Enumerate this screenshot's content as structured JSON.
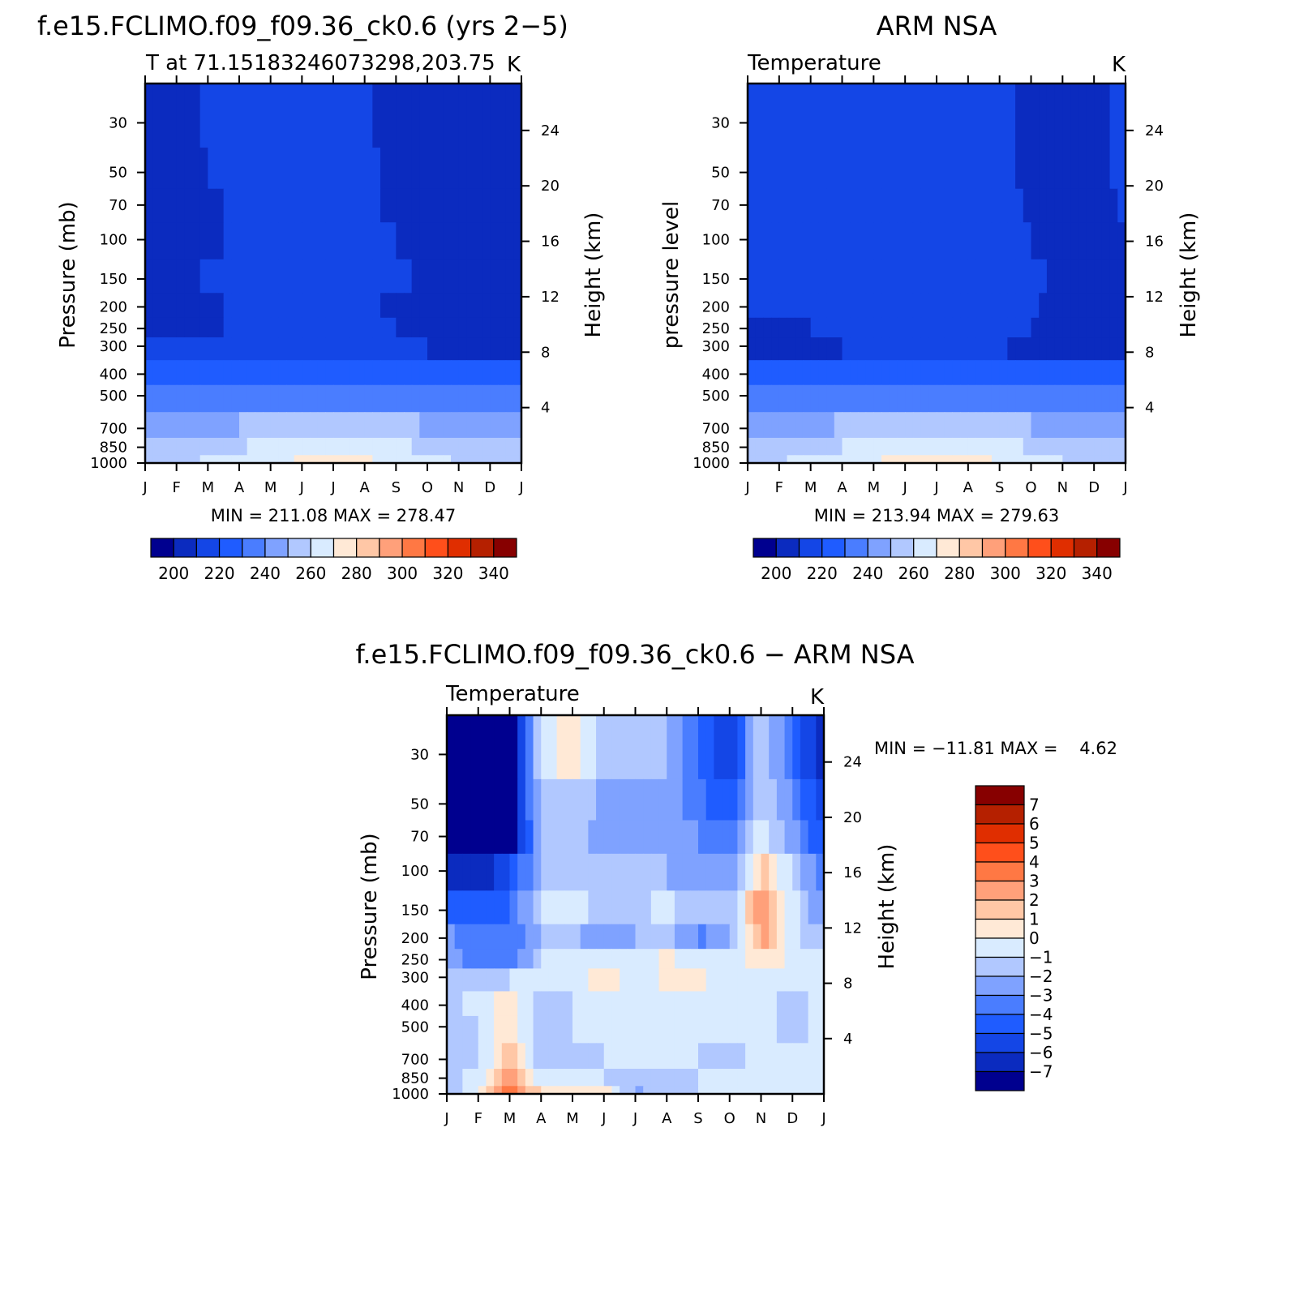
{
  "chart_data": [
    {
      "type": "heatmap",
      "id": "model",
      "title": "f.e15.FCLIMO.f09_f09.36_ck0.6 (yrs 2−5)",
      "left_string": "T at 71.15183246073298,203.75",
      "right_string": "K",
      "ylabel": "Pressure (mb)",
      "ylabel_right": "Height (km)",
      "x_ticks": [
        "J",
        "F",
        "M",
        "A",
        "M",
        "J",
        "J",
        "A",
        "S",
        "O",
        "N",
        "D",
        "J"
      ],
      "y_ticks": [
        30,
        50,
        70,
        100,
        150,
        200,
        250,
        300,
        400,
        500,
        700,
        850,
        1000
      ],
      "height_ticks": [
        4,
        8,
        12,
        16,
        20,
        24
      ],
      "ylim": [
        1000,
        20
      ],
      "minmax_text": "MIN = 211.08 MAX = 278.47",
      "legend": {
        "labels": [
          "200",
          "220",
          "240",
          "260",
          "280",
          "300",
          "320",
          "340"
        ],
        "colors": [
          "#00008f",
          "#0b2bbf",
          "#1446e6",
          "#1f5cff",
          "#4a7dff",
          "#7fa2ff",
          "#b1c8ff",
          "#d9ebff",
          "#ffe9d6",
          "#ffc7a6",
          "#ffa07a",
          "#ff7844",
          "#ff4f1b",
          "#e02e00",
          "#b52000",
          "#870000"
        ]
      },
      "contour_values": [
        [
          205,
          205,
          212,
          212,
          212,
          212,
          212,
          212,
          205,
          205,
          205,
          205,
          205
        ],
        [
          205,
          205,
          210,
          212,
          212,
          212,
          212,
          212,
          207,
          205,
          205,
          205,
          205
        ],
        [
          205,
          205,
          208,
          212,
          212,
          212,
          212,
          212,
          208,
          205,
          205,
          205,
          205
        ],
        [
          205,
          205,
          208,
          212,
          212,
          212,
          212,
          212,
          210,
          207,
          206,
          206,
          206
        ],
        [
          206,
          206,
          211,
          212,
          212,
          212,
          212,
          212,
          212,
          208,
          207,
          204,
          207
        ],
        [
          206,
          206,
          208,
          212,
          212,
          212,
          212,
          212,
          208,
          206,
          206,
          206,
          206
        ],
        [
          207,
          207,
          208,
          213,
          214,
          214,
          214,
          214,
          210,
          207,
          206,
          206,
          206
        ],
        [
          210,
          210,
          210,
          213,
          215,
          216,
          216,
          216,
          214,
          210,
          209,
          209,
          209
        ],
        [
          221,
          221,
          222,
          224,
          227,
          228,
          228,
          228,
          226,
          223,
          221,
          221,
          221
        ],
        [
          231,
          231,
          232,
          234,
          237,
          238,
          239,
          238,
          236,
          233,
          231,
          231,
          231
        ],
        [
          245,
          245,
          247,
          250,
          253,
          255,
          256,
          255,
          253,
          249,
          246,
          245,
          245
        ],
        [
          254,
          254,
          256,
          259,
          263,
          266,
          267,
          266,
          263,
          258,
          255,
          254,
          254
        ],
        [
          258,
          258,
          261,
          264,
          268,
          271,
          272,
          271,
          268,
          263,
          259,
          258,
          258
        ]
      ]
    },
    {
      "type": "heatmap",
      "id": "obs",
      "title": "ARM NSA",
      "left_string": "Temperature",
      "right_string": "K",
      "ylabel": "pressure level",
      "ylabel_right": "Height (km)",
      "x_ticks": [
        "J",
        "F",
        "M",
        "A",
        "M",
        "J",
        "J",
        "A",
        "S",
        "O",
        "N",
        "D",
        "J"
      ],
      "y_ticks": [
        30,
        50,
        70,
        100,
        150,
        200,
        250,
        300,
        400,
        500,
        700,
        850,
        1000
      ],
      "height_ticks": [
        4,
        8,
        12,
        16,
        20,
        24
      ],
      "ylim": [
        1000,
        20
      ],
      "minmax_text": "MIN = 213.94 MAX = 279.63",
      "legend": {
        "labels": [
          "200",
          "220",
          "240",
          "260",
          "280",
          "300",
          "320",
          "340"
        ],
        "colors": [
          "#00008f",
          "#0b2bbf",
          "#1446e6",
          "#1f5cff",
          "#4a7dff",
          "#7fa2ff",
          "#b1c8ff",
          "#d9ebff",
          "#ffe9d6",
          "#ffc7a6",
          "#ffa07a",
          "#ff7844",
          "#ff4f1b",
          "#e02e00",
          "#b52000",
          "#870000"
        ]
      },
      "contour_values": [
        [
          212,
          212,
          212,
          212,
          212,
          212,
          218,
          212,
          212,
          208,
          208,
          208,
          212
        ],
        [
          212,
          212,
          212,
          212,
          212,
          212,
          212,
          212,
          212,
          208,
          208,
          208,
          212
        ],
        [
          212,
          212,
          212,
          212,
          212,
          212,
          212,
          212,
          212,
          209,
          208,
          208,
          211
        ],
        [
          212,
          212,
          212,
          212,
          212,
          212,
          212,
          212,
          212,
          210,
          208,
          208,
          210
        ],
        [
          212,
          212,
          212,
          212,
          212,
          212,
          212,
          212,
          212,
          212,
          208,
          208,
          208
        ],
        [
          211,
          212,
          212,
          212,
          212,
          212,
          212,
          212,
          212,
          211,
          208,
          208,
          208
        ],
        [
          208,
          209,
          210,
          212,
          212,
          212,
          212,
          212,
          212,
          210,
          208,
          208,
          208
        ],
        [
          208,
          208,
          207,
          210,
          212,
          213,
          214,
          213,
          211,
          208,
          208,
          208,
          208
        ],
        [
          221,
          222,
          223,
          225,
          227,
          228,
          229,
          228,
          226,
          223,
          222,
          221,
          221
        ],
        [
          231,
          232,
          233,
          235,
          237,
          238,
          239,
          238,
          236,
          234,
          232,
          231,
          231
        ],
        [
          245,
          246,
          248,
          251,
          254,
          256,
          257,
          256,
          253,
          250,
          247,
          245,
          245
        ],
        [
          254,
          255,
          257,
          260,
          264,
          267,
          268,
          267,
          264,
          259,
          256,
          254,
          254
        ],
        [
          258,
          259,
          262,
          265,
          269,
          272,
          273,
          272,
          269,
          264,
          260,
          258,
          258
        ]
      ]
    },
    {
      "type": "heatmap",
      "id": "diff",
      "title": "f.e15.FCLIMO.f09_f09.36_ck0.6 − ARM NSA",
      "left_string": "Temperature",
      "right_string": "K",
      "ylabel": "Pressure (mb)",
      "ylabel_right": "Height (km)",
      "x_ticks": [
        "J",
        "F",
        "M",
        "A",
        "M",
        "J",
        "J",
        "A",
        "S",
        "O",
        "N",
        "D",
        "J"
      ],
      "y_ticks": [
        30,
        50,
        70,
        100,
        150,
        200,
        250,
        300,
        400,
        500,
        700,
        850,
        1000
      ],
      "height_ticks": [
        4,
        8,
        12,
        16,
        20,
        24
      ],
      "ylim": [
        1000,
        20
      ],
      "minmax_text": "MIN = −11.81 MAX =    4.62",
      "legend": {
        "labels": [
          "7",
          "6",
          "5",
          "4",
          "3",
          "2",
          "1",
          "0",
          "−1",
          "−2",
          "−3",
          "−4",
          "−5",
          "−6",
          "−7"
        ],
        "colors": [
          "#870000",
          "#b52000",
          "#e02e00",
          "#ff4f1b",
          "#ff7844",
          "#ffa07a",
          "#ffc7a6",
          "#ffe9d6",
          "#d9ebff",
          "#b1c8ff",
          "#7fa2ff",
          "#4a7dff",
          "#1f5cff",
          "#1446e6",
          "#0b2bbf",
          "#00008f"
        ]
      },
      "contour_values": [
        [
          -10,
          -10,
          -8,
          -1,
          1,
          -2,
          -1,
          -2,
          -4,
          -6,
          -1,
          -4,
          -7
        ],
        [
          -10,
          -10,
          -8,
          -1.5,
          -1,
          -2.5,
          -2,
          -2.5,
          -3.5,
          -5,
          -1,
          -3,
          -6
        ],
        [
          -9,
          -10,
          -8,
          -2,
          -1.5,
          -2.5,
          -2,
          -2.5,
          -3,
          -4,
          -0.5,
          -2.5,
          -5
        ],
        [
          -6,
          -7,
          -5,
          -2,
          -1,
          -2,
          -2,
          -2,
          -2.5,
          -3,
          1.5,
          -1,
          -4
        ],
        [
          -4,
          -5,
          -4,
          -1,
          -0.5,
          -1.5,
          -1.5,
          -0.5,
          -2,
          -2,
          3,
          -0.5,
          -3
        ],
        [
          -2.5,
          -4,
          -4,
          -2,
          -1.5,
          -3,
          -2,
          -1.5,
          -3.2,
          -2.5,
          2.5,
          -0.5,
          -2
        ],
        [
          -2,
          -4,
          -4,
          -1,
          -0.8,
          -1,
          -0.7,
          0.3,
          -1,
          -1,
          1,
          -0.5,
          -1
        ],
        [
          -1.5,
          -1.5,
          -1,
          -0.5,
          -0.5,
          0.3,
          -0.5,
          0.2,
          0.2,
          -0.5,
          -0.2,
          -0.5,
          -0.5
        ],
        [
          -1.5,
          -0.5,
          0.5,
          -1.5,
          -1,
          -0.6,
          -0.6,
          -0.5,
          -0.5,
          -1,
          -0.5,
          -1.5,
          -0.5
        ],
        [
          -1.5,
          -1,
          0.6,
          -1.5,
          -1,
          -0.8,
          -0.5,
          -0.5,
          -0.5,
          -1,
          -0.5,
          -1.5,
          -0.5
        ],
        [
          -1.5,
          -1,
          1.5,
          -1.5,
          -1.5,
          -1,
          -0.5,
          -1,
          -1,
          -1.5,
          -0.5,
          -1,
          -0.5
        ],
        [
          -1.5,
          -0.5,
          2.5,
          -0.5,
          -1,
          -1,
          -1.5,
          -1.5,
          -1,
          -1,
          -0.5,
          -0.8,
          -0.5
        ],
        [
          -1.5,
          -0.5,
          3.5,
          1,
          0.5,
          0.5,
          -2.2,
          -1.2,
          -1,
          -1,
          -0.5,
          -0.8,
          -1
        ]
      ]
    }
  ]
}
